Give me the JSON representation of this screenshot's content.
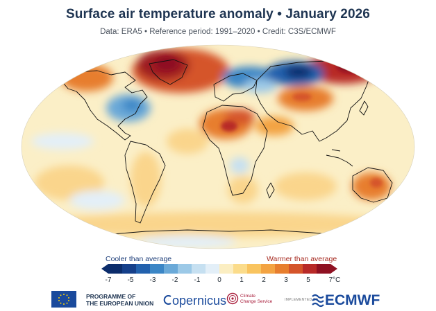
{
  "title": "Surface air temperature anomaly • January 2026",
  "subtitle": "Data: ERA5 • Reference period: 1991–2020 • Credit: C3S/ECMWF",
  "legend": {
    "cooler_label": "Cooler than average",
    "warmer_label": "Warmer than average",
    "ticks": [
      "-7",
      "-5",
      "-3",
      "-2",
      "-1",
      "0",
      "1",
      "2",
      "3",
      "5",
      "7°C"
    ],
    "colors": [
      "#0b2c6b",
      "#153f8a",
      "#2261ad",
      "#3b86c6",
      "#6aa9d8",
      "#9cc9e7",
      "#c6e0f1",
      "#e3eff8",
      "#fbeec2",
      "#fbdc8b",
      "#f9c45f",
      "#f3a342",
      "#e77e2e",
      "#d5542a",
      "#b82a28",
      "#8f1122"
    ]
  },
  "map": {
    "colors": {
      "ocean_base": "#fbefc7",
      "warm_light": "#fad58c",
      "warm": "#f3a342",
      "hot": "#d5542a",
      "very_hot": "#9e1c24",
      "cool_light": "#c6e0f1",
      "cool": "#6aa9d8",
      "cold": "#2261ad",
      "very_cold": "#0b2c6b",
      "coastline": "#111111"
    }
  },
  "footer": {
    "eu_line1": "PROGRAMME OF",
    "eu_line2": "THE EUROPEAN UNION",
    "copernicus": "opernicus",
    "c3s_line1": "Climate",
    "c3s_line2": "Change Service",
    "implemented_by": "IMPLEMENTED BY",
    "ecmwf": "ECMWF"
  }
}
